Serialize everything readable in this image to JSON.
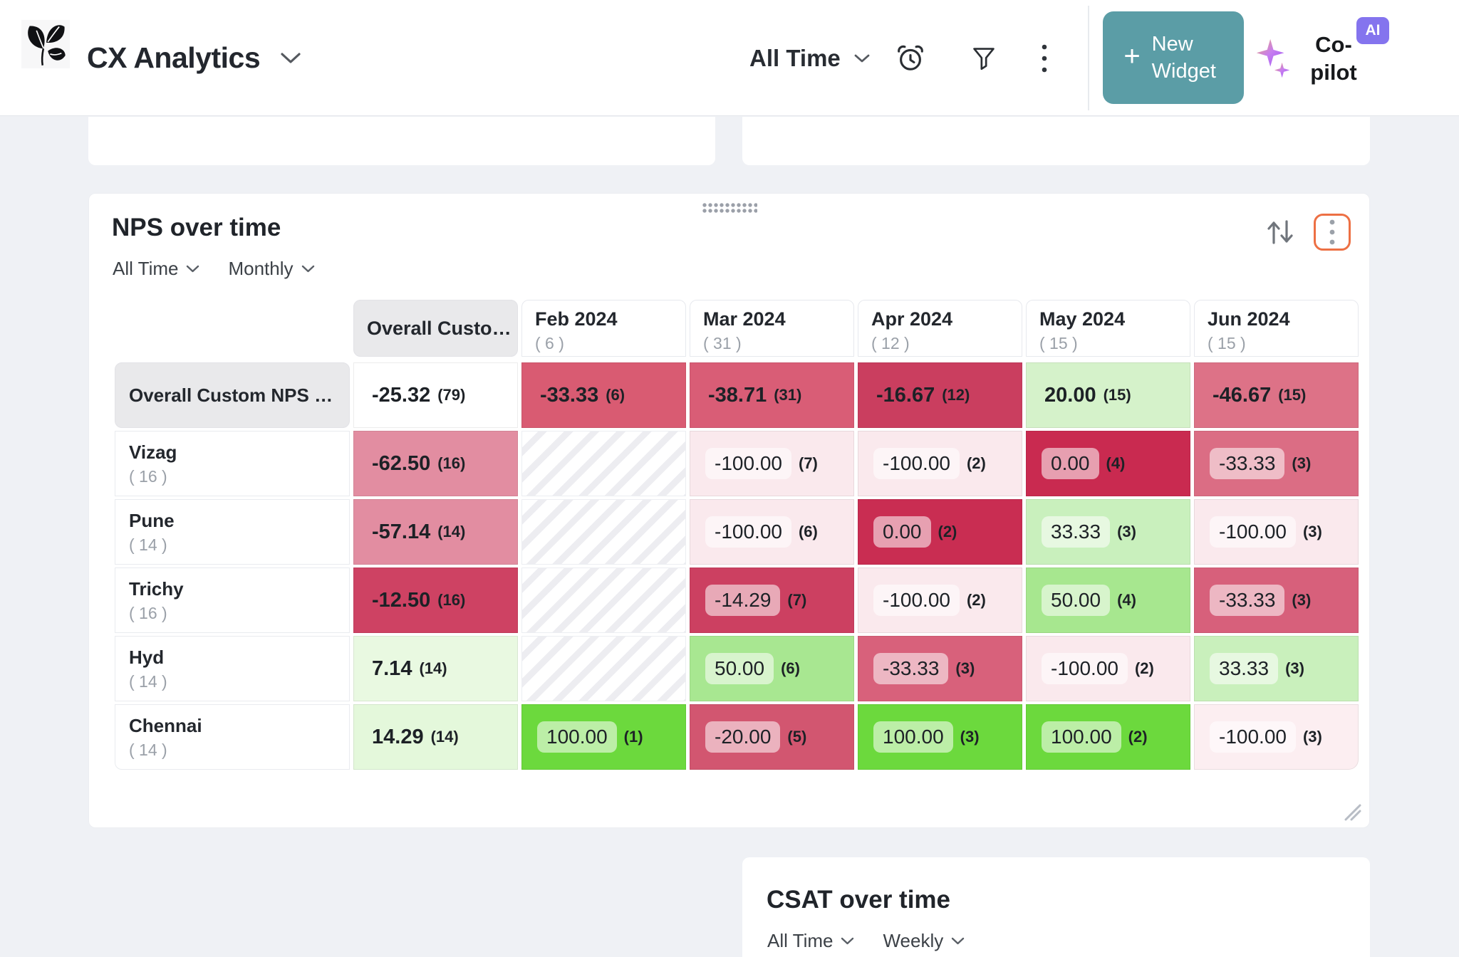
{
  "colors": {
    "accent_teal": "#5b9da6",
    "accent_orange": "#ed7044",
    "ai_badge_purple": "#8474ee",
    "page_background": "#eff1f5"
  },
  "topbar": {
    "app_title": "CX Analytics",
    "time_filter": "All Time",
    "new_widget_plus": "+",
    "new_widget_button": "New Widget",
    "copilot_label": "Co-pilot",
    "ai_badge": "AI"
  },
  "nps_widget": {
    "title": "NPS over time",
    "time_filter": "All Time",
    "granularity_filter": "Monthly",
    "table": {
      "columns": [
        {
          "label": "Overall Custom...",
          "count": ""
        },
        {
          "label": "Feb 2024",
          "count": "( 6 )"
        },
        {
          "label": "Mar 2024",
          "count": "( 31 )"
        },
        {
          "label": "Apr 2024",
          "count": "( 12 )"
        },
        {
          "label": "May 2024",
          "count": "( 15 )"
        },
        {
          "label": "Jun 2024",
          "count": "( 15 )"
        }
      ],
      "rows": [
        {
          "label": "Overall Custom NPS Calcu...",
          "count": "",
          "cells": [
            {
              "value": "-25.32",
              "count": "(79)",
              "bg": "#ffffff"
            },
            {
              "value": "-33.33",
              "count": "(6)",
              "bg": "#d95b72"
            },
            {
              "value": "-38.71",
              "count": "(31)",
              "bg": "#d95d76"
            },
            {
              "value": "-16.67",
              "count": "(12)",
              "bg": "#ca3e5f"
            },
            {
              "value": "20.00",
              "count": "(15)",
              "bg": "#d5f2ca"
            },
            {
              "value": "-46.67",
              "count": "(15)",
              "bg": "#dd7287"
            }
          ]
        },
        {
          "label": "Vizag",
          "count": "( 16 )",
          "cells": [
            {
              "value": "-62.50",
              "count": "(16)",
              "bg": "#e28da1"
            },
            {
              "empty": true
            },
            {
              "value": "-100.00",
              "count": "(7)",
              "bg": "#fae9ed",
              "pill": true
            },
            {
              "value": "-100.00",
              "count": "(2)",
              "bg": "#fae9ed",
              "pill": true
            },
            {
              "value": "0.00",
              "count": "(4)",
              "bg": "#c92a50",
              "pill": true
            },
            {
              "value": "-33.33",
              "count": "(3)",
              "bg": "#db6d84",
              "pill": true
            }
          ]
        },
        {
          "label": "Pune",
          "count": "( 14 )",
          "cells": [
            {
              "value": "-57.14",
              "count": "(14)",
              "bg": "#e28da1"
            },
            {
              "empty": true
            },
            {
              "value": "-100.00",
              "count": "(6)",
              "bg": "#fae9ed",
              "pill": true
            },
            {
              "value": "0.00",
              "count": "(2)",
              "bg": "#c92d52",
              "pill": true
            },
            {
              "value": "33.33",
              "count": "(3)",
              "bg": "#c9f0bd",
              "pill": true
            },
            {
              "value": "-100.00",
              "count": "(3)",
              "bg": "#fae9ed",
              "pill": true
            }
          ]
        },
        {
          "label": "Trichy",
          "count": "( 16 )",
          "cells": [
            {
              "value": "-12.50",
              "count": "(16)",
              "bg": "#ce4263"
            },
            {
              "empty": true
            },
            {
              "value": "-14.29",
              "count": "(7)",
              "bg": "#cc4061",
              "pill": true
            },
            {
              "value": "-100.00",
              "count": "(2)",
              "bg": "#fae9ed",
              "pill": true
            },
            {
              "value": "50.00",
              "count": "(4)",
              "bg": "#a7e78f",
              "pill": true
            },
            {
              "value": "-33.33",
              "count": "(3)",
              "bg": "#d7607b",
              "pill": true
            }
          ]
        },
        {
          "label": "Hyd",
          "count": "( 14 )",
          "cells": [
            {
              "value": "7.14",
              "count": "(14)",
              "bg": "#e9f9e1"
            },
            {
              "empty": true
            },
            {
              "value": "50.00",
              "count": "(6)",
              "bg": "#a8e791",
              "pill": true
            },
            {
              "value": "-33.33",
              "count": "(3)",
              "bg": "#d8617b",
              "pill": true
            },
            {
              "value": "-100.00",
              "count": "(2)",
              "bg": "#fae9ed",
              "pill": true
            },
            {
              "value": "33.33",
              "count": "(3)",
              "bg": "#c9f0bc",
              "pill": true
            }
          ]
        },
        {
          "label": "Chennai",
          "count": "( 14 )",
          "cells": [
            {
              "value": "14.29",
              "count": "(14)",
              "bg": "#e4f8db"
            },
            {
              "value": "100.00",
              "count": "(1)",
              "bg": "#6cd93d",
              "pill": true
            },
            {
              "value": "-20.00",
              "count": "(5)",
              "bg": "#d25670",
              "pill": true
            },
            {
              "value": "100.00",
              "count": "(3)",
              "bg": "#6cd93d",
              "pill": true
            },
            {
              "value": "100.00",
              "count": "(2)",
              "bg": "#6cd93d",
              "pill": true
            },
            {
              "value": "-100.00",
              "count": "(3)",
              "bg": "#fceef1",
              "pill": true
            }
          ]
        }
      ]
    }
  },
  "csat_widget": {
    "title": "CSAT over time",
    "time_filter": "All Time",
    "granularity_filter": "Weekly"
  }
}
